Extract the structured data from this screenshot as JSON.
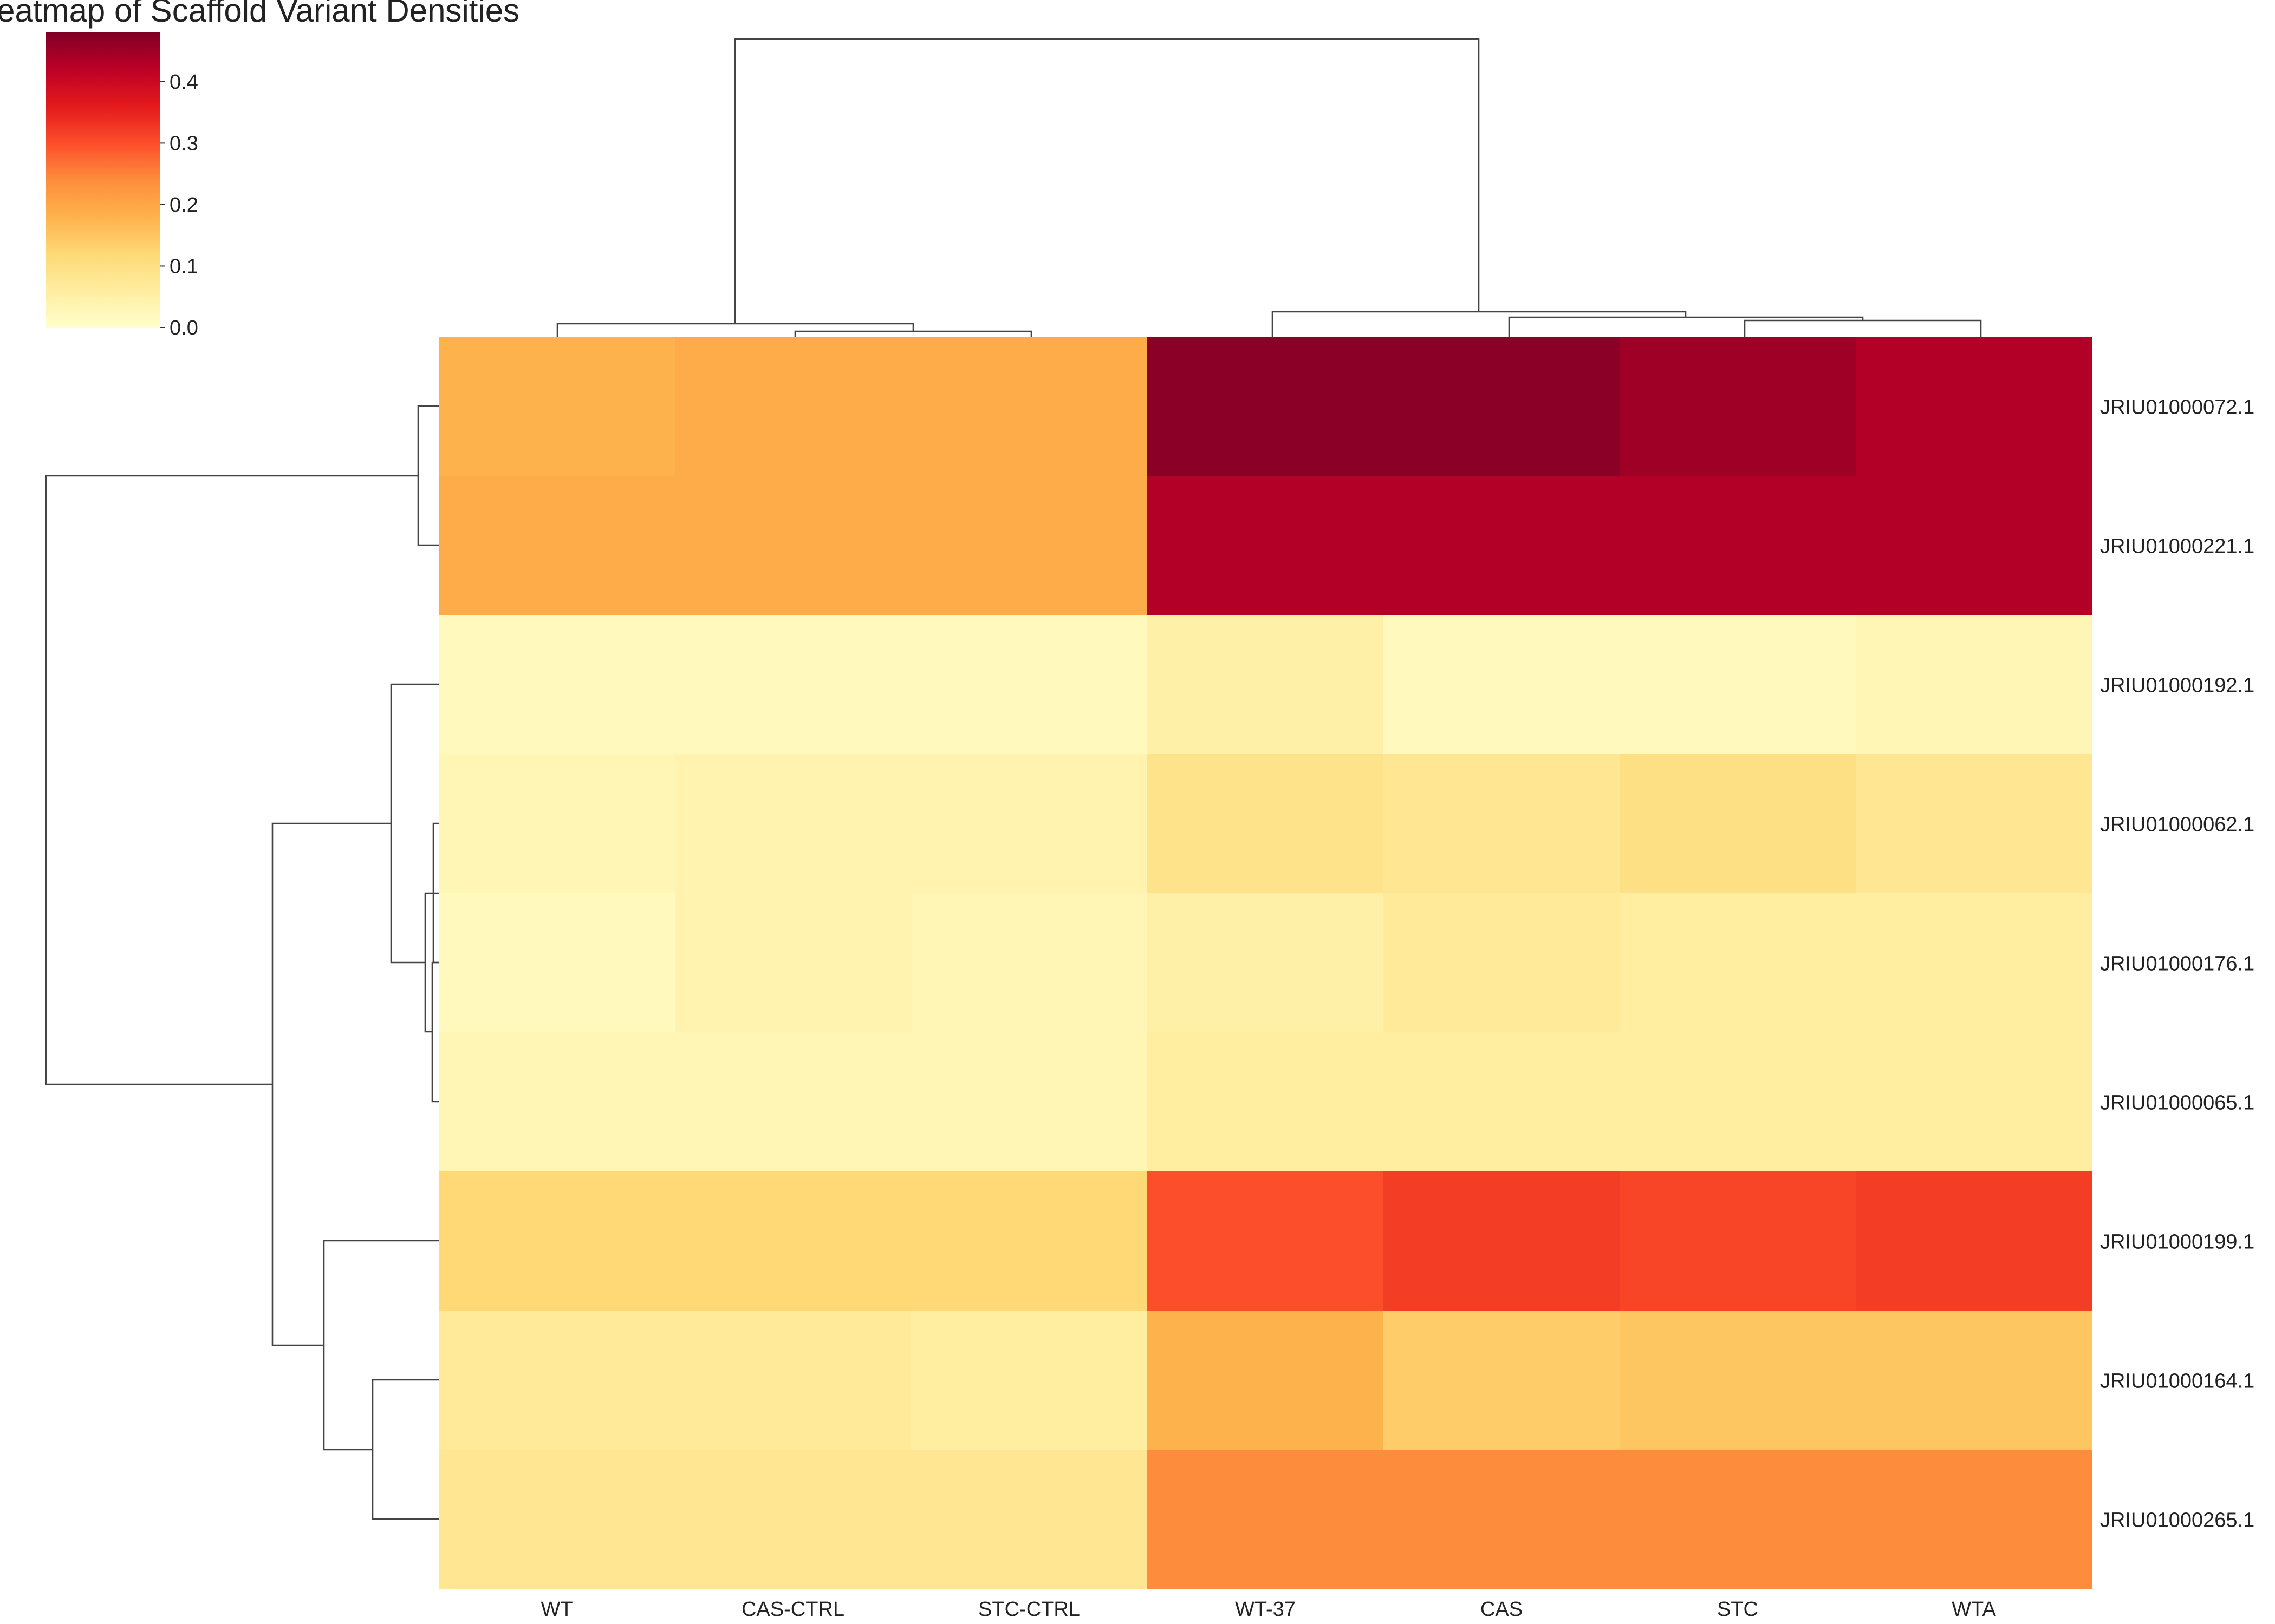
{
  "chart_data": {
    "type": "heatmap",
    "title": "Heatmap of Scaffold Variant Densities",
    "columns": [
      "WT",
      "CAS-CTRL",
      "STC-CTRL",
      "WT-37",
      "CAS",
      "STC",
      "WTA"
    ],
    "rows": [
      "JRIU01000072.1",
      "JRIU01000221.1",
      "JRIU01000192.1",
      "JRIU01000062.1",
      "JRIU01000176.1",
      "JRIU01000065.1",
      "JRIU01000199.1",
      "JRIU01000164.1",
      "JRIU01000265.1"
    ],
    "values": [
      [
        0.18,
        0.19,
        0.19,
        0.47,
        0.47,
        0.45,
        0.43
      ],
      [
        0.19,
        0.19,
        0.19,
        0.43,
        0.43,
        0.43,
        0.43
      ],
      [
        0.02,
        0.02,
        0.02,
        0.05,
        0.02,
        0.02,
        0.03
      ],
      [
        0.03,
        0.04,
        0.04,
        0.09,
        0.08,
        0.1,
        0.08
      ],
      [
        0.02,
        0.04,
        0.03,
        0.05,
        0.07,
        0.06,
        0.06
      ],
      [
        0.03,
        0.03,
        0.03,
        0.06,
        0.06,
        0.06,
        0.06
      ],
      [
        0.12,
        0.12,
        0.12,
        0.3,
        0.32,
        0.31,
        0.32
      ],
      [
        0.07,
        0.07,
        0.06,
        0.18,
        0.14,
        0.15,
        0.15
      ],
      [
        0.08,
        0.08,
        0.08,
        0.24,
        0.24,
        0.24,
        0.24
      ]
    ],
    "colorbar": {
      "min": 0.0,
      "max": 0.48,
      "ticks": [
        0.0,
        0.1,
        0.2,
        0.3,
        0.4
      ],
      "tick_labels": [
        "0.0",
        "0.1",
        "0.2",
        "0.3",
        "0.4"
      ],
      "colormap": "YlOrRd",
      "stops": [
        "#ffffcc",
        "#ffeda0",
        "#fed976",
        "#feb24c",
        "#fd8d3c",
        "#fc4e2a",
        "#e31a1c",
        "#bd0026",
        "#800026"
      ]
    },
    "row_dendrogram": true,
    "column_dendrogram": true,
    "grid": false
  }
}
